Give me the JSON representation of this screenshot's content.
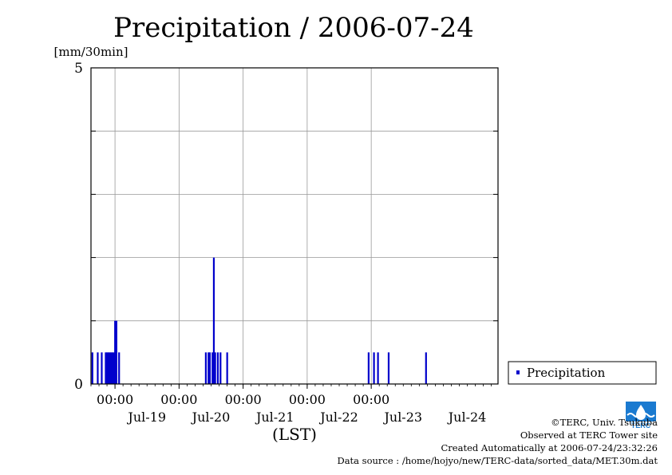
{
  "chart_data": {
    "type": "bar",
    "title": "Precipitation / 2006-07-24",
    "ylabel": "[mm/30min]",
    "xlabel": "(LST)",
    "ylim": [
      0,
      5
    ],
    "y_tick_labels": [
      "0",
      "5"
    ],
    "xlim": [
      "2006-07-18 15:00",
      "2006-07-24 23:30"
    ],
    "x_time_labels": [
      "00:00",
      "00:00",
      "00:00",
      "00:00",
      "00:00"
    ],
    "x_day_labels": [
      "Jul-19",
      "Jul-20",
      "Jul-21",
      "Jul-22",
      "Jul-23",
      "Jul-24"
    ],
    "day_label_dates": [
      "2006-07-19",
      "2006-07-20",
      "2006-07-21",
      "2006-07-22",
      "2006-07-23",
      "2006-07-24"
    ],
    "grid": true,
    "legend_position": "right",
    "series": [
      {
        "name": "Precipitation",
        "color": "#0000cc",
        "points": [
          {
            "x": "2006-07-18 15:30",
            "y": 0.5
          },
          {
            "x": "2006-07-18 17:30",
            "y": 0.5
          },
          {
            "x": "2006-07-18 19:00",
            "y": 0.5
          },
          {
            "x": "2006-07-18 20:30",
            "y": 0.5
          },
          {
            "x": "2006-07-18 21:00",
            "y": 0.5
          },
          {
            "x": "2006-07-18 21:30",
            "y": 0.5
          },
          {
            "x": "2006-07-18 22:00",
            "y": 0.5
          },
          {
            "x": "2006-07-18 22:30",
            "y": 0.5
          },
          {
            "x": "2006-07-18 23:00",
            "y": 0.5
          },
          {
            "x": "2006-07-18 23:30",
            "y": 0.5
          },
          {
            "x": "2006-07-19 00:00",
            "y": 1.0
          },
          {
            "x": "2006-07-19 00:30",
            "y": 1.0
          },
          {
            "x": "2006-07-19 01:30",
            "y": 0.5
          },
          {
            "x": "2006-07-20 10:00",
            "y": 0.5
          },
          {
            "x": "2006-07-20 11:00",
            "y": 0.5
          },
          {
            "x": "2006-07-20 11:30",
            "y": 0.5
          },
          {
            "x": "2006-07-20 12:30",
            "y": 0.5
          },
          {
            "x": "2006-07-20 13:00",
            "y": 2.0
          },
          {
            "x": "2006-07-20 13:30",
            "y": 0.5
          },
          {
            "x": "2006-07-20 14:30",
            "y": 0.5
          },
          {
            "x": "2006-07-20 15:30",
            "y": 0.5
          },
          {
            "x": "2006-07-20 18:00",
            "y": 0.5
          },
          {
            "x": "2006-07-22 23:00",
            "y": 0.5
          },
          {
            "x": "2006-07-23 01:00",
            "y": 0.5
          },
          {
            "x": "2006-07-23 02:30",
            "y": 0.5
          },
          {
            "x": "2006-07-23 06:30",
            "y": 0.5
          },
          {
            "x": "2006-07-23 20:30",
            "y": 0.5
          }
        ]
      }
    ]
  },
  "credits": {
    "copyright": "©TERC, Univ. Tsukuba",
    "site": "Observed at TERC Tower site",
    "created": "Created Automatically at 2006-07-24/23:32:26",
    "source": "Data source : /home/hojyo/new/TERC-data/sorted_data/MET.30m.dat"
  },
  "logo": {
    "text": "TERC",
    "color": "#1a7ad0"
  }
}
